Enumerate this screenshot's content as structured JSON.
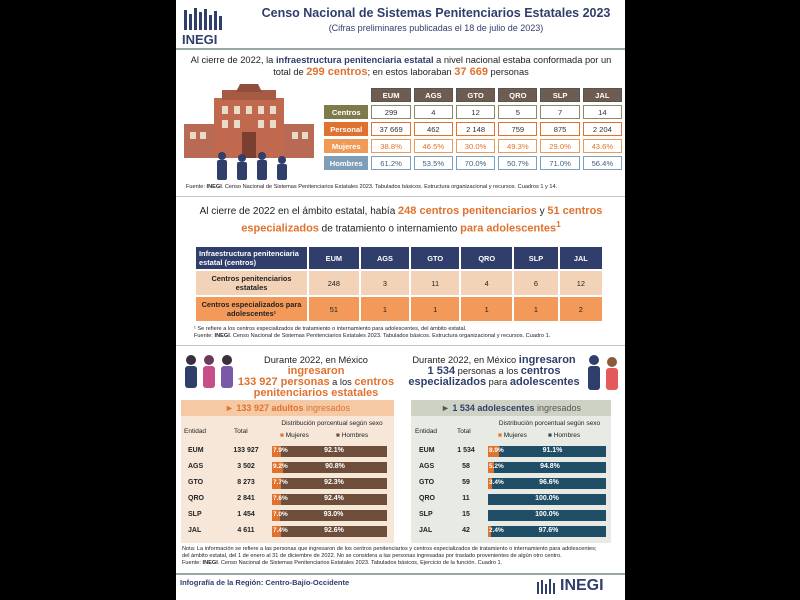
{
  "header": {
    "logo_text": "INEGI",
    "title": "Censo Nacional de Sistemas Penitenciarios Estatales 2023",
    "subtitle": "(Cifras preliminares publicadas el 18 de julio de 2023)"
  },
  "intro": {
    "p1": "Al cierre de 2022, la ",
    "h1": "infraestructura penitenciaria estatal",
    "p2": " a nivel nacional estaba conformada por un total de ",
    "h2": "299 centros",
    "p3": "; en estos laboraban ",
    "h3": "37 669",
    "p4": " personas"
  },
  "table1": {
    "columns": [
      "EUM",
      "AGS",
      "GTO",
      "QRO",
      "SLP",
      "JAL"
    ],
    "rows": [
      {
        "label": "Centros",
        "values": [
          "299",
          "4",
          "12",
          "5",
          "7",
          "14"
        ]
      },
      {
        "label": "Personal",
        "values": [
          "37 669",
          "462",
          "2 148",
          "759",
          "875",
          "2 204"
        ]
      },
      {
        "label": "Mujeres",
        "values": [
          "38.8%",
          "46.5%",
          "30.0%",
          "49.3%",
          "29.0%",
          "43.6%"
        ]
      },
      {
        "label": "Hombres",
        "values": [
          "61.2%",
          "53.5%",
          "70.0%",
          "50.7%",
          "71.0%",
          "56.4%"
        ]
      }
    ],
    "source_label": "Fuente: ",
    "source_bold": "INEGI",
    "source_text": ". Censo Nacional de Sistemas Penitenciarios Estatales 2023. Tabulados básicos. Estructura organizacional y recursos. Cuadros 1 y 14."
  },
  "section2": {
    "p1": "Al cierre de 2022 en el ámbito estatal, había ",
    "h1": "248 centros penitenciarios",
    "p2": " y ",
    "h2": "51 centros especializados",
    "p3": " de tratamiento o internamiento ",
    "h3": "para adolescentes",
    "sup": "1"
  },
  "table2": {
    "header_label": "Infraestructura penitenciaria estatal (centros)",
    "columns": [
      "EUM",
      "AGS",
      "GTO",
      "QRO",
      "SLP",
      "JAL"
    ],
    "rows": [
      {
        "label": "Centros penitenciarios estatales",
        "values": [
          "248",
          "3",
          "11",
          "4",
          "6",
          "12"
        ]
      },
      {
        "label": "Centros especializados para adolescentes¹",
        "values": [
          "51",
          "1",
          "1",
          "1",
          "1",
          "2"
        ]
      }
    ],
    "note": "¹ Se refiere a los centros especializados de tratamiento o internamiento para adolescentes, del ámbito estatal.",
    "source_label": "Fuente: ",
    "source_bold": "INEGI",
    "source_text": ". Censo Nacional de Sistemas Penitenciarios Estatales 2023. Tabulados básicos. Estructura organizacional y recursos. Cuadro 1."
  },
  "section3": {
    "left": {
      "p1": "Durante 2022, en México ",
      "h1": "ingresaron",
      "h2": "133 927 personas",
      "p2": " a los ",
      "h3": "centros penitenciarios estatales"
    },
    "right": {
      "p1": "Durante 2022, en México ",
      "h1": "ingresaron",
      "h2": "1 534",
      "p2": " personas a los ",
      "h3": "centros especializados",
      "p3": " para ",
      "h4": "adolescentes"
    }
  },
  "adultos": {
    "banner_bold": "133 927 adultos",
    "banner_rest": " ingresados",
    "col_entidad": "Entidad",
    "col_total": "Total",
    "col_dist": "Distribución porcentual según sexo",
    "legend_m": "Mujeres",
    "legend_h": "Hombres",
    "rows": [
      {
        "entidad": "EUM",
        "total": "133 927",
        "m": "7.9%",
        "h": "92.1%",
        "mval": 7.9
      },
      {
        "entidad": "AGS",
        "total": "3 502",
        "m": "9.2%",
        "h": "90.8%",
        "mval": 9.2
      },
      {
        "entidad": "GTO",
        "total": "8 273",
        "m": "7.7%",
        "h": "92.3%",
        "mval": 7.7
      },
      {
        "entidad": "QRO",
        "total": "2 841",
        "m": "7.6%",
        "h": "92.4%",
        "mval": 7.6
      },
      {
        "entidad": "SLP",
        "total": "1 454",
        "m": "7.0%",
        "h": "93.0%",
        "mval": 7.0
      },
      {
        "entidad": "JAL",
        "total": "4 611",
        "m": "7.4%",
        "h": "92.6%",
        "mval": 7.4
      }
    ]
  },
  "adolescentes": {
    "banner_bold": "1 534 adolescentes",
    "banner_rest": " ingresados",
    "col_entidad": "Entidad",
    "col_total": "Total",
    "col_dist": "Distribución porcentual según sexo",
    "legend_m": "Mujeres",
    "legend_h": "Hombres",
    "rows": [
      {
        "entidad": "EUM",
        "total": "1 534",
        "m": "8.9%",
        "h": "91.1%",
        "mval": 8.9
      },
      {
        "entidad": "AGS",
        "total": "58",
        "m": "5.2%",
        "h": "94.8%",
        "mval": 5.2
      },
      {
        "entidad": "GTO",
        "total": "59",
        "m": "3.4%",
        "h": "96.6%",
        "mval": 3.4
      },
      {
        "entidad": "QRO",
        "total": "11",
        "m": "",
        "h": "100.0%",
        "mval": 0
      },
      {
        "entidad": "SLP",
        "total": "15",
        "m": "",
        "h": "100.0%",
        "mval": 0
      },
      {
        "entidad": "JAL",
        "total": "42",
        "m": "2.4%",
        "h": "97.6%",
        "mval": 2.4
      }
    ]
  },
  "bottom_note": {
    "line1": "Nota: La información se refiere a las personas que ingresaron de los centros penitenciarios y centros especializados de tratamiento o internamiento para adolescentes;",
    "line2": "del ámbito estatal, del 1 de enero al 31 de diciembre de 2022. No se considera a las personas ingresadas por traslado provenientes de algún otro centro.",
    "source_label": "Fuente: ",
    "source_bold": "INEGI",
    "source_text": ". Censo Nacional de Sistemas Penitenciarios Estatales 2023. Tabulados básicos, Ejercicio de la función. Cuadro 1."
  },
  "footer": {
    "region": "Infografía de la Región: Centro-Bajío-Occidente",
    "logo_text": "INEGI"
  },
  "colors": {
    "navy": "#2f3e6b",
    "orange": "#e0722f",
    "brown_bar": "#6d4e3a",
    "teal_bar": "#1f4e66"
  }
}
